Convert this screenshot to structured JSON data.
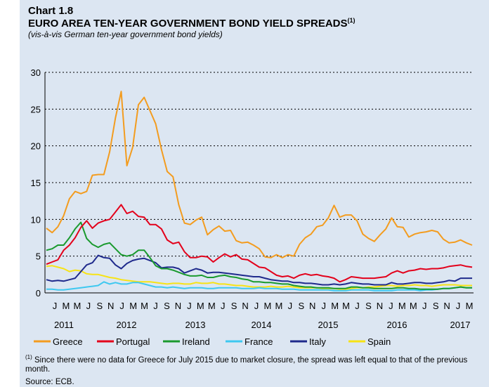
{
  "chart_data": {
    "label": "Chart 1.8",
    "title": "EURO AREA TEN-YEAR GOVERNMENT BOND YIELD SPREADS",
    "title_note": "(1)",
    "subtitle": "(vis-à-vis German ten-year government bond yields)",
    "type": "line",
    "ylim": [
      0,
      30
    ],
    "yticks": [
      0,
      5,
      10,
      15,
      20,
      25,
      30
    ],
    "grid": "horizontal dashed",
    "legend_position": "bottom",
    "month_labels": [
      "J",
      "M",
      "M",
      "J",
      "S",
      "N",
      "J",
      "M",
      "M",
      "J",
      "S",
      "N",
      "J",
      "M",
      "M",
      "J",
      "S",
      "N",
      "J",
      "M",
      "M",
      "J",
      "S",
      "N",
      "J",
      "M",
      "M",
      "J",
      "S",
      "N",
      "J",
      "M",
      "M",
      "J",
      "S",
      "N",
      "J",
      "M"
    ],
    "years": [
      "2011",
      "2012",
      "2013",
      "2014",
      "2015",
      "2016",
      "2017"
    ],
    "x_start": "2011-01",
    "series": [
      {
        "name": "Greece",
        "color": "#f39c1f",
        "values": [
          8.8,
          8.2,
          9.0,
          10.5,
          12.8,
          13.8,
          13.5,
          13.8,
          16.0,
          16.1,
          16.1,
          19.2,
          23.8,
          27.4,
          17.3,
          19.8,
          25.6,
          26.6,
          24.8,
          23.0,
          19.5,
          16.5,
          15.8,
          12.0,
          9.5,
          9.3,
          9.9,
          10.3,
          7.9,
          8.6,
          9.1,
          8.4,
          8.5,
          7.1,
          6.8,
          6.9,
          6.5,
          6.0,
          4.9,
          4.8,
          5.2,
          4.8,
          5.2,
          5.0,
          6.6,
          7.5,
          8.0,
          9.0,
          9.2,
          10.2,
          11.9,
          10.3,
          10.6,
          10.6,
          9.8,
          8.0,
          7.4,
          7.0,
          7.9,
          8.7,
          10.2,
          9.0,
          8.9,
          7.6,
          8.0,
          8.2,
          8.3,
          8.5,
          8.3,
          7.3,
          6.8,
          6.9,
          7.2,
          6.8,
          6.5
        ]
      },
      {
        "name": "Portugal",
        "color": "#e3001b",
        "values": [
          3.9,
          4.2,
          4.5,
          5.8,
          6.5,
          7.5,
          8.9,
          9.8,
          8.8,
          9.5,
          9.8,
          10.0,
          11.0,
          12.0,
          10.8,
          11.1,
          10.4,
          10.3,
          9.3,
          9.3,
          8.7,
          7.2,
          6.7,
          6.9,
          5.6,
          4.8,
          4.8,
          5.0,
          4.9,
          4.2,
          4.8,
          5.3,
          4.9,
          5.2,
          4.6,
          4.5,
          4.0,
          3.5,
          3.4,
          2.9,
          2.4,
          2.2,
          2.3,
          2.0,
          2.4,
          2.6,
          2.4,
          2.5,
          2.3,
          2.2,
          2.0,
          1.5,
          1.8,
          2.2,
          2.1,
          2.0,
          2.0,
          2.0,
          2.1,
          2.2,
          2.7,
          3.0,
          2.7,
          3.0,
          3.1,
          3.3,
          3.2,
          3.3,
          3.3,
          3.4,
          3.6,
          3.7,
          3.8,
          3.6,
          3.5
        ]
      },
      {
        "name": "Ireland",
        "color": "#1a9a2e",
        "values": [
          5.8,
          6.0,
          6.5,
          6.5,
          7.5,
          8.7,
          9.6,
          7.4,
          6.6,
          6.2,
          6.6,
          6.8,
          6.0,
          5.2,
          5.0,
          5.2,
          5.8,
          5.8,
          4.8,
          3.7,
          3.3,
          3.3,
          3.1,
          2.8,
          2.5,
          2.3,
          2.3,
          2.4,
          2.1,
          2.1,
          2.3,
          2.4,
          2.2,
          2.1,
          1.9,
          1.8,
          1.5,
          1.5,
          1.4,
          1.4,
          1.3,
          1.2,
          1.2,
          1.0,
          0.9,
          0.8,
          0.8,
          0.7,
          0.7,
          0.7,
          0.6,
          0.6,
          0.6,
          0.8,
          0.8,
          0.7,
          0.7,
          0.6,
          0.6,
          0.6,
          0.6,
          0.7,
          0.7,
          0.6,
          0.6,
          0.5,
          0.5,
          0.5,
          0.5,
          0.6,
          0.6,
          0.7,
          0.8,
          0.7,
          0.7
        ]
      },
      {
        "name": "France",
        "color": "#3ec8f0",
        "values": [
          0.5,
          0.5,
          0.4,
          0.4,
          0.5,
          0.6,
          0.7,
          0.8,
          0.9,
          1.0,
          1.5,
          1.2,
          1.4,
          1.2,
          1.2,
          1.4,
          1.4,
          1.2,
          1.0,
          0.8,
          0.8,
          0.7,
          0.8,
          0.7,
          0.6,
          0.7,
          0.7,
          0.7,
          0.6,
          0.6,
          0.7,
          0.7,
          0.7,
          0.7,
          0.6,
          0.6,
          0.6,
          0.7,
          0.6,
          0.6,
          0.6,
          0.5,
          0.5,
          0.5,
          0.4,
          0.4,
          0.4,
          0.4,
          0.4,
          0.4,
          0.3,
          0.3,
          0.3,
          0.4,
          0.4,
          0.4,
          0.4,
          0.3,
          0.3,
          0.3,
          0.3,
          0.4,
          0.4,
          0.4,
          0.4,
          0.3,
          0.4,
          0.4,
          0.5,
          0.6,
          0.6,
          0.7,
          0.8,
          0.7,
          0.7
        ]
      },
      {
        "name": "Italy",
        "color": "#1f2a8c",
        "values": [
          1.8,
          1.6,
          1.7,
          1.6,
          1.8,
          2.0,
          2.9,
          3.8,
          4.1,
          5.1,
          4.8,
          4.7,
          3.8,
          3.3,
          4.0,
          4.4,
          4.6,
          4.7,
          4.4,
          4.1,
          3.4,
          3.5,
          3.5,
          3.3,
          2.7,
          3.0,
          3.3,
          3.1,
          2.7,
          2.8,
          2.8,
          2.7,
          2.6,
          2.5,
          2.4,
          2.3,
          2.2,
          2.2,
          2.0,
          1.8,
          1.7,
          1.6,
          1.6,
          1.4,
          1.4,
          1.3,
          1.3,
          1.2,
          1.1,
          1.1,
          1.2,
          1.1,
          1.2,
          1.4,
          1.3,
          1.2,
          1.2,
          1.1,
          1.1,
          1.1,
          1.4,
          1.2,
          1.2,
          1.3,
          1.4,
          1.4,
          1.3,
          1.3,
          1.4,
          1.5,
          1.7,
          1.6,
          2.0,
          2.0,
          2.0
        ]
      },
      {
        "name": "Spain",
        "color": "#f7e315",
        "values": [
          3.6,
          3.7,
          3.5,
          3.3,
          2.9,
          3.1,
          3.0,
          2.6,
          2.5,
          2.5,
          2.3,
          2.1,
          2.0,
          1.8,
          1.7,
          1.6,
          1.5,
          1.5,
          1.5,
          1.4,
          1.3,
          1.2,
          1.3,
          1.3,
          1.2,
          1.2,
          1.4,
          1.3,
          1.3,
          1.4,
          1.2,
          1.2,
          1.1,
          1.0,
          1.0,
          0.9,
          0.8,
          0.8,
          0.8,
          0.9,
          0.8,
          0.8,
          0.9,
          0.8,
          0.7,
          0.7,
          0.7,
          0.7,
          0.6,
          0.6,
          0.6,
          0.5,
          0.5,
          0.6,
          0.7,
          0.7,
          0.8,
          0.8,
          0.9,
          1.0,
          1.0,
          0.9,
          1.0,
          1.0,
          1.1,
          1.0,
          1.0,
          0.9,
          1.0,
          1.1,
          1.1,
          1.1,
          1.0,
          1.0,
          1.0
        ]
      }
    ]
  },
  "footnote": {
    "marker": "(1)",
    "text": " Since there were no data for Greece for July 2015 due to market closure, the spread was left equal to that of the previous month."
  },
  "source": "Source: ECB."
}
